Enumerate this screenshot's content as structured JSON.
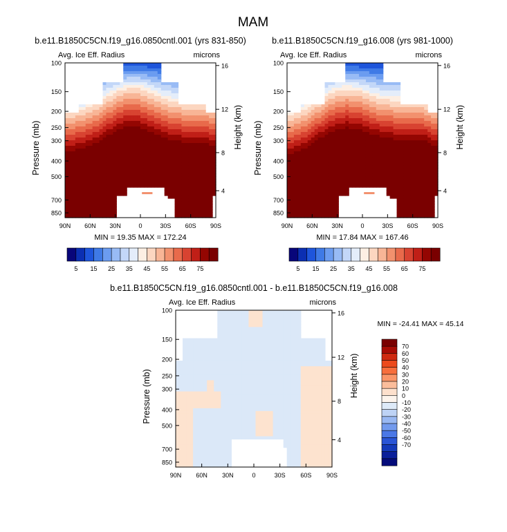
{
  "figure": {
    "title": "MAM"
  },
  "chart_data": [
    {
      "type": "heatmap",
      "panel": "case1",
      "title": "b.e11.B1850C5CN.f19_g16.0850cntl.001 (yrs 831-850)",
      "left_label": "Avg. Ice Eff. Radius",
      "right_label": "microns",
      "ylabel": "Pressure (mb)",
      "ylabel_right": "Height (km)",
      "x_ticks": [
        "90N",
        "60N",
        "30N",
        "0",
        "30S",
        "60S",
        "90S"
      ],
      "y_ticks": [
        "100",
        "150",
        "200",
        "250",
        "300",
        "400",
        "500",
        "700",
        "850"
      ],
      "y2_ticks": [
        "16",
        "12",
        "8",
        "4"
      ],
      "stats": "MIN = 19.35   MAX = 172.24",
      "min": 19.35,
      "max": 172.24,
      "colorbar_labels": [
        "5",
        "15",
        "25",
        "35",
        "45",
        "55",
        "65",
        "75"
      ]
    },
    {
      "type": "heatmap",
      "panel": "case2",
      "title": "b.e11.B1850C5CN.f19_g16.008 (yrs 981-1000)",
      "left_label": "Avg. Ice Eff. Radius",
      "right_label": "microns",
      "ylabel": "Pressure (mb)",
      "ylabel_right": "Height (km)",
      "x_ticks": [
        "90N",
        "60N",
        "30N",
        "0",
        "30S",
        "60S",
        "90S"
      ],
      "y_ticks": [
        "100",
        "150",
        "200",
        "250",
        "300",
        "400",
        "500",
        "700",
        "850"
      ],
      "y2_ticks": [
        "16",
        "12",
        "8",
        "4"
      ],
      "stats": "MIN = 17.84   MAX = 167.46",
      "min": 17.84,
      "max": 167.46,
      "colorbar_labels": [
        "5",
        "15",
        "25",
        "35",
        "45",
        "55",
        "65",
        "75"
      ]
    },
    {
      "type": "heatmap",
      "panel": "difference",
      "title": "b.e11.B1850C5CN.f19_g16.0850cntl.001 - b.e11.B1850C5CN.f19_g16.008",
      "left_label": "Avg. Ice Eff. Radius",
      "right_label": "microns",
      "ylabel": "Pressure (mb)",
      "ylabel_right": "Height (km)",
      "x_ticks": [
        "90N",
        "60N",
        "30N",
        "0",
        "30S",
        "60S",
        "90S"
      ],
      "y_ticks": [
        "100",
        "150",
        "200",
        "250",
        "300",
        "400",
        "500",
        "700",
        "850"
      ],
      "y2_ticks": [
        "16",
        "12",
        "8",
        "4"
      ],
      "stats": "MIN = -24.41   MAX =  45.14",
      "min": -24.41,
      "max": 45.14,
      "colorbar_labels": [
        "70",
        "60",
        "50",
        "40",
        "30",
        "20",
        "10",
        "0",
        "-10",
        "-20",
        "-30",
        "-40",
        "-50",
        "-60",
        "-70"
      ]
    }
  ],
  "colors": {
    "abs_scale": [
      "#08067a",
      "#0b2fb2",
      "#1e55db",
      "#3f7ae6",
      "#6b9cf0",
      "#98bbf5",
      "#c3d7f8",
      "#e4edfa",
      "#fdefe3",
      "#fcd6c0",
      "#f8b596",
      "#f2916e",
      "#e86a4b",
      "#d84331",
      "#c01f17",
      "#940602",
      "#7a0000"
    ],
    "diff_scale": [
      "#7a0000",
      "#a80c04",
      "#cf2a10",
      "#ec4a1c",
      "#f76e3c",
      "#fa9568",
      "#fbbd9b",
      "#fde0cc",
      "#fdf4ec",
      "#deeaf8",
      "#bed3f5",
      "#99b8f2",
      "#729aed",
      "#4b78e6",
      "#2a55d6",
      "#143aba",
      "#0a1f9a",
      "#050c7a"
    ]
  }
}
